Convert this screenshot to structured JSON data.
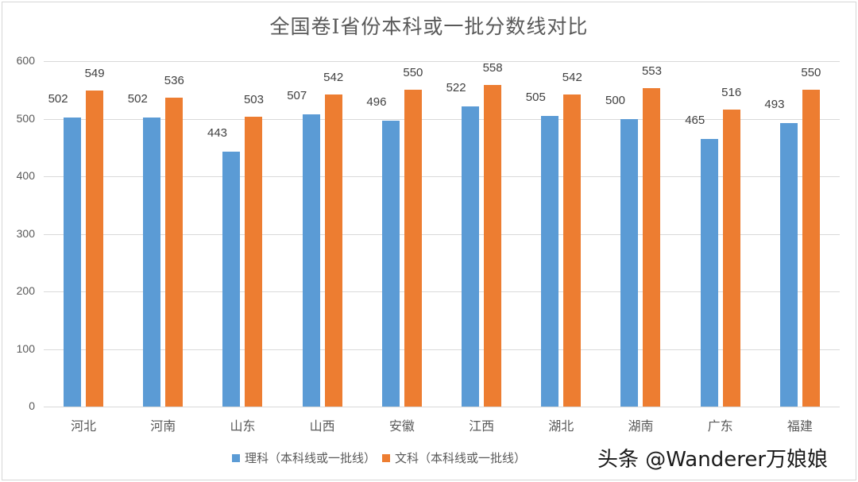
{
  "chart_data": {
    "type": "bar",
    "title": "全国卷Ⅰ省份本科或一批分数线对比",
    "categories": [
      "河北",
      "河南",
      "山东",
      "山西",
      "安徽",
      "江西",
      "湖北",
      "湖南",
      "广东",
      "福建"
    ],
    "series": [
      {
        "name": "理科（本科线或一批线）",
        "color": "#5b9bd5",
        "values": [
          502,
          502,
          443,
          507,
          496,
          522,
          505,
          500,
          465,
          493
        ]
      },
      {
        "name": "文科（本科线或一批线）",
        "color": "#ed7d31",
        "values": [
          549,
          536,
          503,
          542,
          550,
          558,
          542,
          553,
          516,
          550
        ]
      }
    ],
    "xlabel": "",
    "ylabel": "",
    "ylim": [
      0,
      600
    ],
    "yticks": [
      0,
      100,
      200,
      300,
      400,
      500,
      600
    ],
    "grid": true,
    "legend_position": "bottom",
    "data_labels": true
  },
  "watermark": "头条 @Wanderer万娘娘"
}
